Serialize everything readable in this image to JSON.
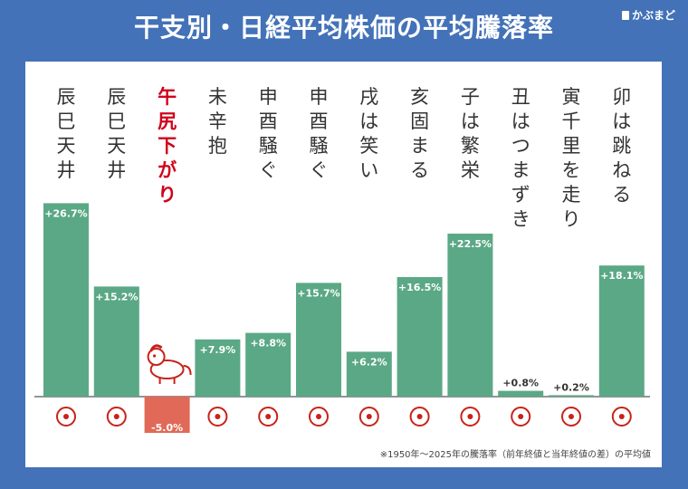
{
  "title": "干支別・日経平均株価の平均騰落率",
  "logo": "かぶまど",
  "footnote": "※1950年〜2025年の騰落率（前年終値と当年終値の差）の平均値",
  "colors": {
    "bar": "#5ba886",
    "negative": "#e06a57",
    "highlight": "#d0021b",
    "text": "#333333",
    "icon": "#c8221a"
  },
  "chart_data": {
    "type": "bar",
    "title": "干支別・日経平均株価の平均騰落率",
    "categories": [
      "辰",
      "巳",
      "午",
      "未",
      "申",
      "酉",
      "戌",
      "亥",
      "子",
      "丑",
      "寅",
      "卯"
    ],
    "proverbs": [
      "辰巳天井",
      "辰巳天井",
      "午尻下がり",
      "未辛抱",
      "申酉騒ぐ",
      "申酉騒ぐ",
      "戌は笑い",
      "亥固まる",
      "子は繁栄",
      "丑はつまずき",
      "寅千里を走り",
      "卯は跳ねる"
    ],
    "values": [
      26.7,
      15.2,
      -5.0,
      7.9,
      8.8,
      15.7,
      6.2,
      16.5,
      22.5,
      0.8,
      0.2,
      18.1
    ],
    "labels": [
      "+26.7%",
      "+15.2%",
      "-5.0%",
      "+7.9%",
      "+8.8%",
      "+15.7%",
      "+6.2%",
      "+16.5%",
      "+22.5%",
      "+0.8%",
      "+0.2%",
      "+18.1%"
    ],
    "highlight_index": 2,
    "icons": [
      "dragon-icon",
      "snake-icon",
      "horse-icon",
      "sheep-icon",
      "monkey-icon",
      "rooster-icon",
      "dog-icon",
      "boar-icon",
      "rat-icon",
      "ox-icon",
      "tiger-icon",
      "rabbit-icon"
    ],
    "ylim": [
      -5,
      26.7
    ],
    "grid": false,
    "legend": "none"
  }
}
